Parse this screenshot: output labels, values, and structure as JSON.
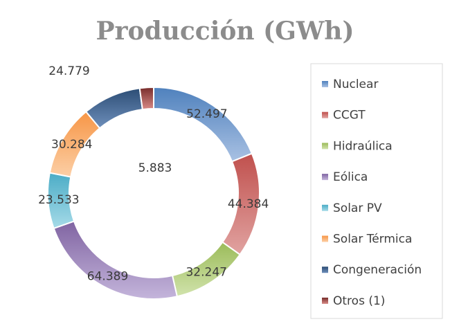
{
  "chart_data": {
    "type": "pie",
    "variant": "doughnut",
    "title": "Producción (GWh)",
    "legend_position": "right",
    "categories": [
      "Nuclear",
      "CCGT",
      "Hidraúlica",
      "Eólica",
      "Solar PV",
      "Solar Térmica",
      "Congeneración",
      "Otros (1)"
    ],
    "values": [
      52497,
      44384,
      32247,
      64389,
      23533,
      30284,
      24779,
      5883
    ],
    "value_labels": [
      "52.497",
      "44.384",
      "32.247",
      "64.389",
      "23.533",
      "30.284",
      "24.779",
      "5.883"
    ],
    "colors": [
      "#4f81bd",
      "#c0504d",
      "#9bbb59",
      "#8064a2",
      "#4bacc6",
      "#f79646",
      "#2c4d75",
      "#772c2a"
    ],
    "colors_light": [
      "#a9c1e3",
      "#e1a3a1",
      "#d1e3ac",
      "#c4b5db",
      "#a6dbe8",
      "#fccfa6",
      "#6e8fbb",
      "#d98b87"
    ]
  }
}
